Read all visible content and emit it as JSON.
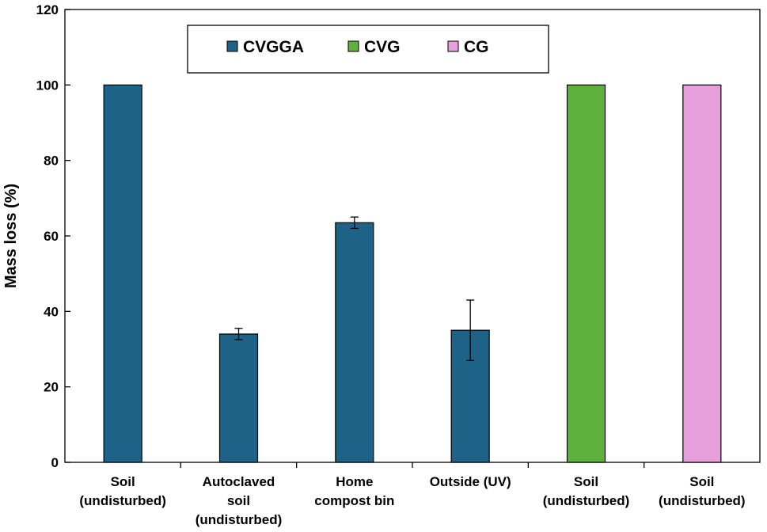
{
  "chart_data": {
    "type": "bar",
    "title": "",
    "xlabel": "",
    "ylabel": "Mass loss (%)",
    "ylim": [
      0,
      120
    ],
    "yticks": [
      "0",
      "20",
      "40",
      "60",
      "80",
      "100",
      "120"
    ],
    "grid": false,
    "legend_position": "top-center",
    "categories": [
      [
        "Soil",
        "(undisturbed)"
      ],
      [
        "Autoclaved",
        "soil",
        "(undisturbed)"
      ],
      [
        "Home",
        "compost bin"
      ],
      [
        "Outside (UV)"
      ],
      [
        "Soil",
        "(undisturbed)"
      ],
      [
        "Soil",
        "(undisturbed)"
      ]
    ],
    "series": [
      {
        "name": "CVGGA",
        "color": "#1f6287",
        "values": [
          100,
          34,
          63.5,
          35,
          null,
          null
        ],
        "errors": [
          null,
          1.5,
          1.5,
          8,
          null,
          null
        ]
      },
      {
        "name": "CVG",
        "color": "#5fb13d",
        "values": [
          null,
          null,
          null,
          null,
          100,
          null
        ],
        "errors": [
          null,
          null,
          null,
          null,
          null,
          null
        ]
      },
      {
        "name": "CG",
        "color": "#e8a0dc",
        "values": [
          null,
          null,
          null,
          null,
          null,
          100
        ],
        "errors": [
          null,
          null,
          null,
          null,
          null,
          null
        ]
      }
    ]
  }
}
